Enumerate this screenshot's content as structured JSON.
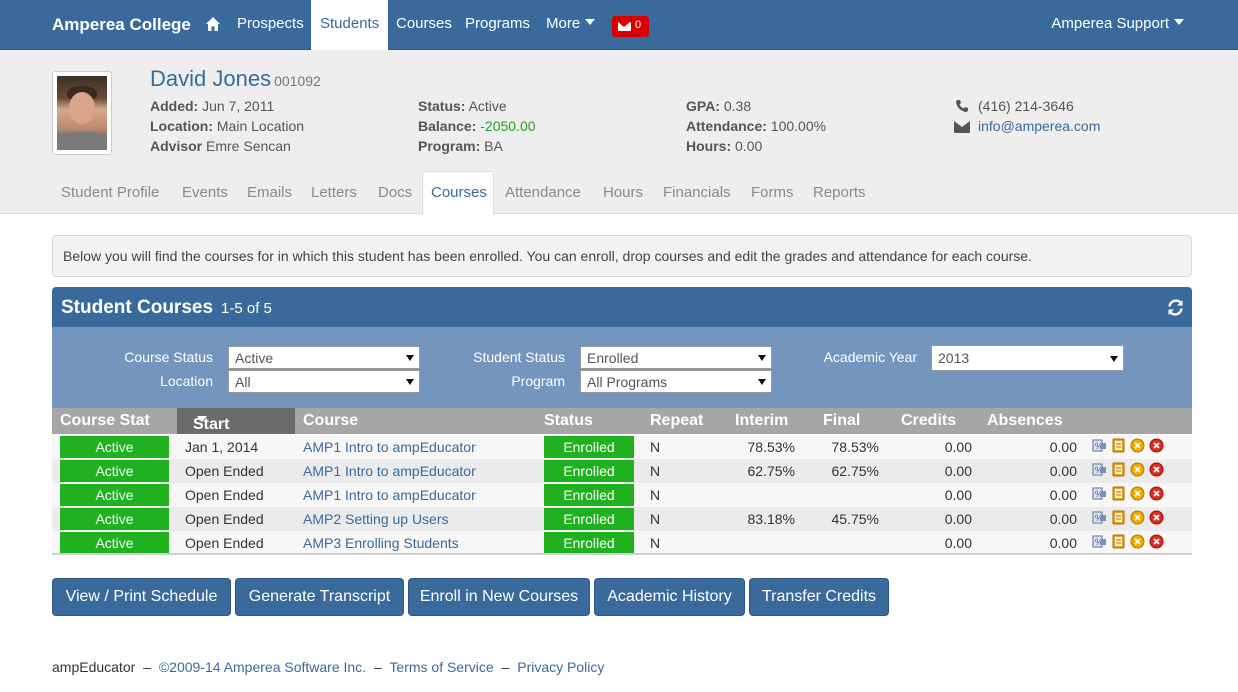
{
  "navbar": {
    "brand": "Amperea College",
    "items": [
      "Prospects",
      "Students",
      "Courses",
      "Programs",
      "More"
    ],
    "active": "Students",
    "mail_count": "0",
    "user": "Amperea Support"
  },
  "student": {
    "name": "David Jones",
    "id": "001092",
    "added_label": "Added:",
    "added": "Jun 7, 2011",
    "location_label": "Location:",
    "location": "Main Location",
    "advisor_label": "Advisor",
    "advisor": "Emre Sencan",
    "status_label": "Status:",
    "status": "Active",
    "balance_label": "Balance:",
    "balance": "-2050.00",
    "program_label": "Program:",
    "program": "BA",
    "gpa_label": "GPA:",
    "gpa": "0.38",
    "attendance_label": "Attendance:",
    "attendance": "100.00%",
    "hours_label": "Hours:",
    "hours": "0.00",
    "phone": "(416) 214-3646",
    "email": "info@amperea.com"
  },
  "tabs": [
    "Student Profile",
    "Events",
    "Emails",
    "Letters",
    "Docs",
    "Courses",
    "Attendance",
    "Hours",
    "Financials",
    "Forms",
    "Reports"
  ],
  "active_tab": "Courses",
  "alert": "Below you will find the courses for in which this student has been enrolled. You can enroll, drop courses and edit the grades and attendance for each course.",
  "panel": {
    "title": "Student Courses",
    "count": "1-5 of 5"
  },
  "filters": {
    "course_status_label": "Course Status",
    "course_status": "Active",
    "location_label": "Location",
    "location": "All",
    "student_status_label": "Student Status",
    "student_status": "Enrolled",
    "program_label": "Program",
    "program": "All Programs",
    "year_label": "Academic Year",
    "year": "2013"
  },
  "table": {
    "headers": {
      "course_stat": "Course Stat",
      "start": "Start",
      "course": "Course",
      "status": "Status",
      "repeat": "Repeat",
      "interim": "Interim",
      "final": "Final",
      "credits": "Credits",
      "absences": "Absences"
    },
    "rows": [
      {
        "course_stat": "Active",
        "start": "Jan 1, 2014",
        "course": "AMP1 Intro to ampEducator",
        "status": "Enrolled",
        "repeat": "N",
        "interim": "78.53%",
        "final": "78.53%",
        "credits": "0.00",
        "absences": "0.00"
      },
      {
        "course_stat": "Active",
        "start": "Open Ended",
        "course": "AMP1 Intro to ampEducator",
        "status": "Enrolled",
        "repeat": "N",
        "interim": "62.75%",
        "final": "62.75%",
        "credits": "0.00",
        "absences": "0.00"
      },
      {
        "course_stat": "Active",
        "start": "Open Ended",
        "course": "AMP1 Intro to ampEducator",
        "status": "Enrolled",
        "repeat": "N",
        "interim": "",
        "final": "",
        "credits": "0.00",
        "absences": "0.00"
      },
      {
        "course_stat": "Active",
        "start": "Open Ended",
        "course": "AMP2 Setting up Users",
        "status": "Enrolled",
        "repeat": "N",
        "interim": "83.18%",
        "final": "45.75%",
        "credits": "0.00",
        "absences": "0.00"
      },
      {
        "course_stat": "Active",
        "start": "Open Ended",
        "course": "AMP3 Enrolling Students",
        "status": "Enrolled",
        "repeat": "N",
        "interim": "",
        "final": "",
        "credits": "0.00",
        "absences": "0.00"
      }
    ]
  },
  "buttons": [
    "View / Print Schedule",
    "Generate Transcript",
    "Enroll in New Courses",
    "Academic History",
    "Transfer Credits"
  ],
  "footer": {
    "app": "ampEducator",
    "sep": "–",
    "copyright": "©2009-14 Amperea Software Inc.",
    "terms": "Terms of Service",
    "privacy": "Privacy Policy"
  },
  "colors": {
    "primary": "#3a6a9c",
    "filter_band": "#7495bd",
    "status_green": "#1fb11f",
    "badge_red": "#d60000"
  }
}
